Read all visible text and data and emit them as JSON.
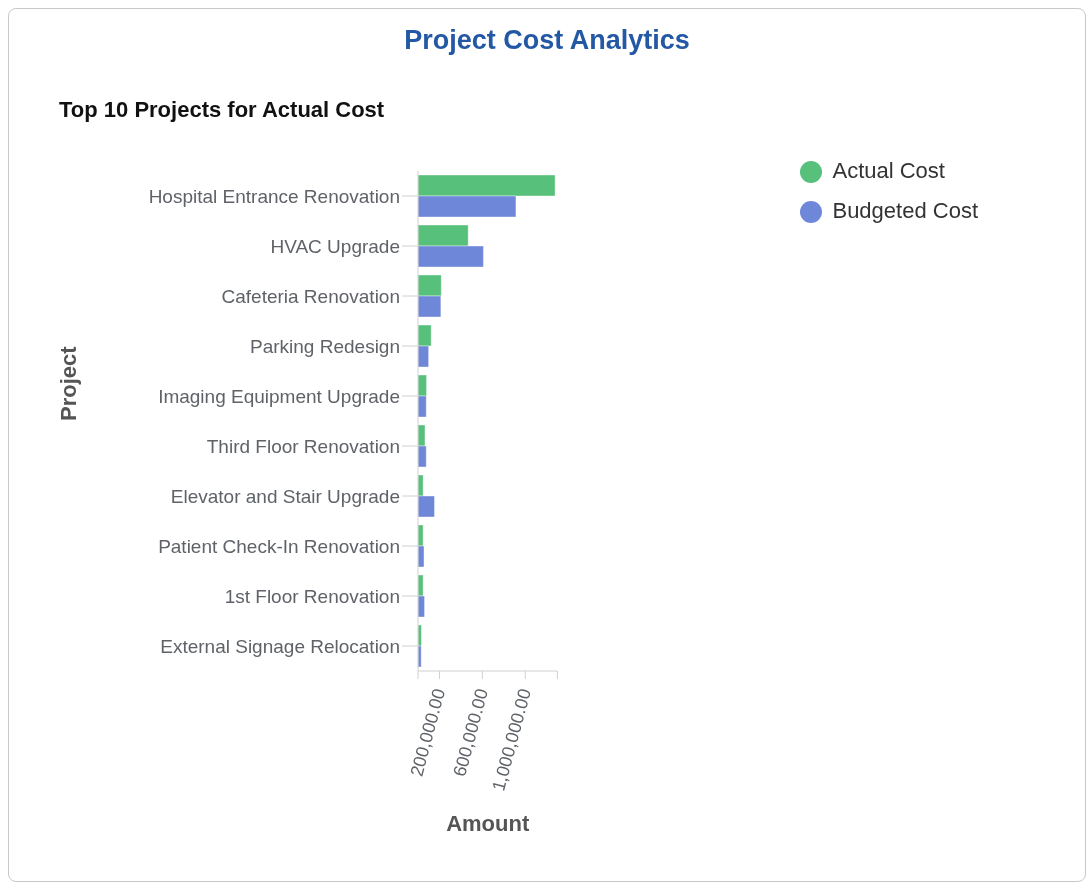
{
  "chart_data": {
    "type": "bar",
    "orientation": "horizontal",
    "title": "Project Cost Analytics",
    "subtitle": "Top 10 Projects for Actual Cost",
    "xlabel": "Amount",
    "ylabel": "Project",
    "categories": [
      "Hospital Entrance Renovation",
      "HVAC Upgrade",
      "Cafeteria Renovation",
      "Parking Redesign",
      "Imaging Equipment Upgrade",
      "Third Floor Renovation",
      "Elevator and Stair Upgrade",
      "Patient Check-In Renovation",
      "1st Floor Renovation",
      "External Signage Relocation"
    ],
    "series": [
      {
        "name": "Actual Cost",
        "color": "#57c07a",
        "values": [
          1278000,
          468000,
          217000,
          123000,
          80000,
          65000,
          48000,
          48000,
          48000,
          32000
        ]
      },
      {
        "name": "Budgeted Cost",
        "color": "#6f87d9",
        "values": [
          913000,
          610000,
          213000,
          99000,
          77000,
          77000,
          154000,
          56000,
          61000,
          30000
        ]
      }
    ],
    "xlim": [
      0,
      1300000
    ],
    "xticks": [
      {
        "value": 0,
        "label": null
      },
      {
        "value": 200000,
        "label": "200,000.00"
      },
      {
        "value": 600000,
        "label": "600,000.00"
      },
      {
        "value": 1000000,
        "label": "1,000,000.00"
      },
      {
        "value": 1300000,
        "label": null
      }
    ],
    "grid": false,
    "legend": "top right"
  }
}
